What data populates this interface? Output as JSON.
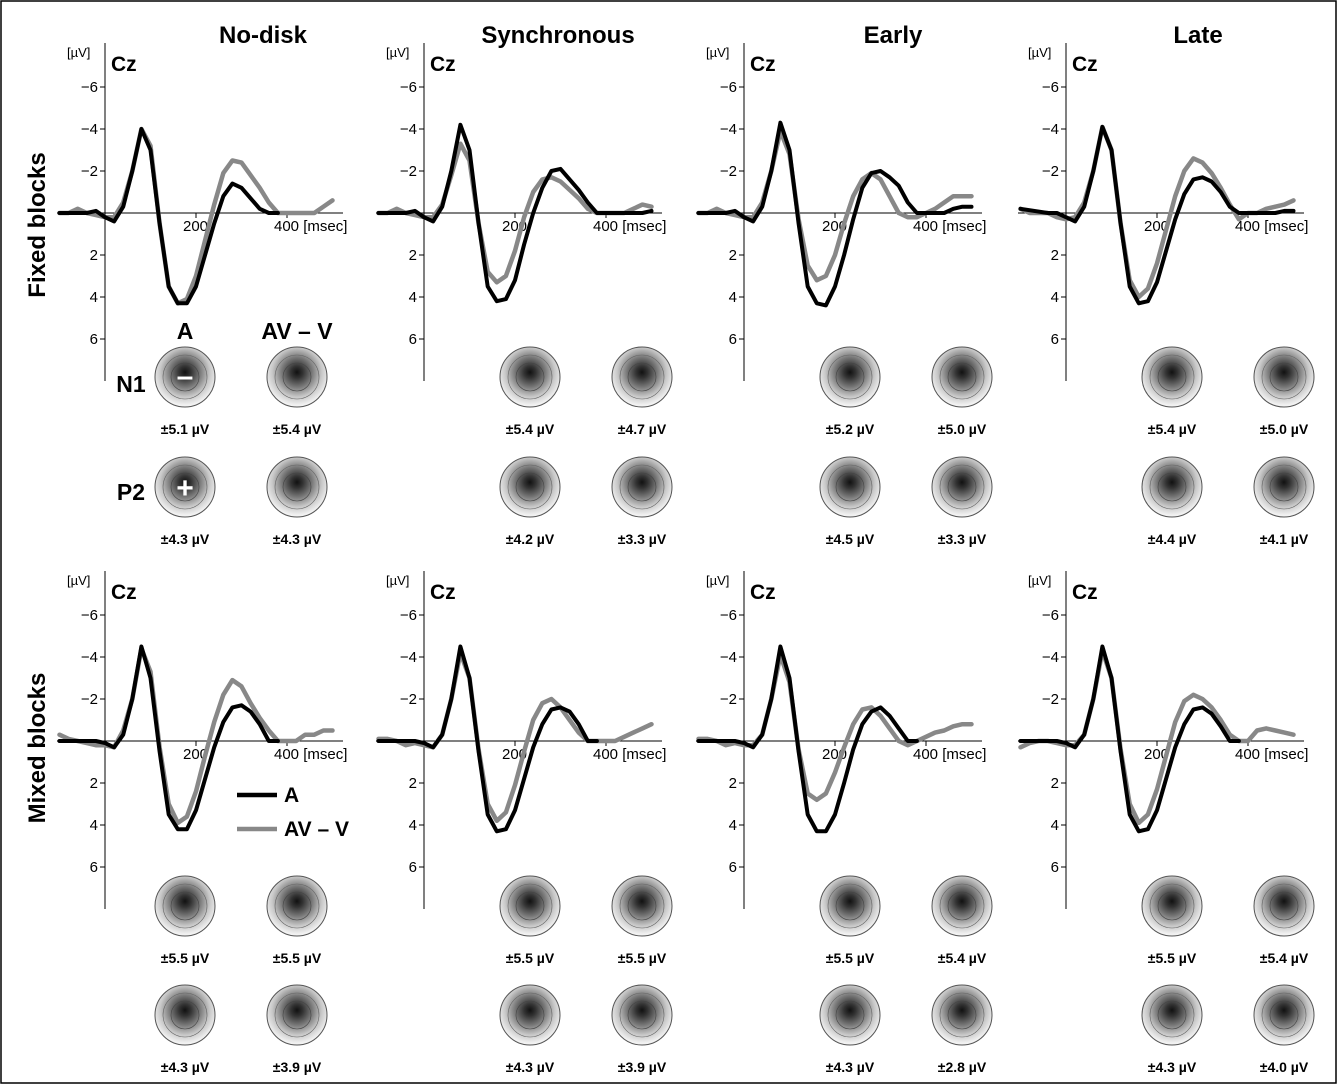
{
  "figure": {
    "columns": [
      "No-disk",
      "Synchronous",
      "Early",
      "Late"
    ],
    "rows": [
      "Fixed blocks",
      "Mixed blocks"
    ],
    "electrode": "Cz",
    "y_unit": "[µV]",
    "x_unit": "[msec]",
    "topo_headers": [
      "A",
      "AV – V"
    ],
    "topo_row_labels": [
      "N1",
      "P2"
    ],
    "topo_polarity_marks": [
      "–",
      "+"
    ],
    "legend": [
      "A",
      "AV – V"
    ]
  },
  "chart_data": {
    "type": "line",
    "x_ticks": [
      200,
      400
    ],
    "x_tick_labels": [
      "200",
      "400 [msec]"
    ],
    "y_ticks": [
      -6,
      -4,
      -2,
      2,
      4,
      6
    ],
    "y_tick_labels": [
      "−6",
      "−4",
      "−2",
      "2",
      "4",
      "6"
    ],
    "y_inverted": true,
    "xlim": [
      -100,
      500
    ],
    "ylim": [
      -7.5,
      8
    ],
    "series_colors": {
      "A": "#000000",
      "AV – V": "#888888"
    },
    "panels": [
      {
        "row": "Fixed blocks",
        "column": "No-disk",
        "A": {
          "x": [
            -100,
            -40,
            -20,
            0,
            20,
            40,
            60,
            80,
            100,
            120,
            140,
            160,
            180,
            200,
            220,
            240,
            260,
            280,
            300,
            320,
            340,
            360,
            380
          ],
          "y": [
            0,
            0,
            -0.1,
            0.2,
            0.4,
            -0.3,
            -2,
            -4,
            -3,
            0.5,
            3.5,
            4.3,
            4.3,
            3.5,
            2,
            0.5,
            -0.8,
            -1.4,
            -1.2,
            -0.7,
            -0.2,
            0,
            0
          ]
        },
        "AV – V": {
          "x": [
            -100,
            -80,
            -60,
            -40,
            -20,
            0,
            20,
            40,
            60,
            80,
            100,
            120,
            140,
            160,
            180,
            200,
            220,
            240,
            260,
            280,
            300,
            320,
            340,
            360,
            380,
            400,
            420,
            440,
            460,
            480,
            500
          ],
          "y": [
            0,
            0,
            -0.2,
            0,
            0.1,
            0.2,
            0.2,
            -0.5,
            -2,
            -4,
            -3.2,
            0.5,
            3.5,
            4.3,
            4.1,
            3,
            1.3,
            -0.4,
            -1.9,
            -2.5,
            -2.4,
            -1.8,
            -1.2,
            -0.5,
            0,
            0,
            0,
            0,
            0,
            -0.3,
            -0.6
          ]
        },
        "topo_values": {
          "N1": [
            "±5.1 µV",
            "±5.4 µV"
          ],
          "P2": [
            "±4.3 µV",
            "±4.3 µV"
          ]
        }
      },
      {
        "row": "Fixed blocks",
        "column": "Synchronous",
        "A": {
          "x": [
            -100,
            -40,
            -20,
            0,
            20,
            40,
            60,
            80,
            100,
            120,
            140,
            160,
            180,
            200,
            220,
            240,
            260,
            280,
            300,
            320,
            340,
            360,
            380,
            400,
            420,
            440,
            460,
            480,
            500
          ],
          "y": [
            0,
            0,
            -0.1,
            0.2,
            0.4,
            -0.3,
            -2,
            -4.2,
            -3,
            0.5,
            3.5,
            4.2,
            4.1,
            3.2,
            1.5,
            0,
            -1.2,
            -2,
            -2.1,
            -1.6,
            -1.1,
            -0.5,
            0,
            0,
            0,
            0,
            0,
            0,
            -0.1
          ]
        },
        "AV – V": {
          "x": [
            -100,
            -80,
            -60,
            -40,
            -20,
            0,
            20,
            40,
            60,
            80,
            100,
            120,
            140,
            160,
            180,
            200,
            220,
            240,
            260,
            280,
            300,
            320,
            340,
            360,
            380,
            400,
            420,
            440,
            460,
            480,
            500
          ],
          "y": [
            0,
            0,
            -0.2,
            0,
            0.1,
            0.2,
            0.2,
            -0.4,
            -1.8,
            -3.3,
            -2.5,
            0.5,
            2.8,
            3.3,
            3,
            1.8,
            0.2,
            -1,
            -1.6,
            -1.7,
            -1.5,
            -1.1,
            -0.7,
            -0.2,
            0,
            0,
            0,
            0,
            -0.2,
            -0.4,
            -0.3
          ]
        },
        "topo_values": {
          "N1": [
            "±5.4 µV",
            "±4.7 µV"
          ],
          "P2": [
            "±4.2 µV",
            "±3.3 µV"
          ]
        }
      },
      {
        "row": "Fixed blocks",
        "column": "Early",
        "A": {
          "x": [
            -100,
            -40,
            -20,
            0,
            20,
            40,
            60,
            80,
            100,
            120,
            140,
            160,
            180,
            200,
            220,
            240,
            260,
            280,
            300,
            320,
            340,
            360,
            380,
            400,
            420,
            440,
            460,
            480,
            500
          ],
          "y": [
            0,
            0,
            -0.1,
            0.2,
            0.4,
            -0.3,
            -2,
            -4.3,
            -3,
            0.5,
            3.5,
            4.3,
            4.4,
            3.5,
            2,
            0.3,
            -1.2,
            -1.9,
            -2,
            -1.7,
            -1.3,
            -0.5,
            0,
            0,
            0,
            0,
            -0.2,
            -0.3,
            -0.3
          ]
        },
        "AV – V": {
          "x": [
            -100,
            -80,
            -60,
            -40,
            -20,
            0,
            20,
            40,
            60,
            80,
            100,
            120,
            140,
            160,
            180,
            200,
            220,
            240,
            260,
            280,
            300,
            320,
            340,
            360,
            380,
            400,
            420,
            440,
            460,
            480,
            500
          ],
          "y": [
            0,
            0,
            -0.2,
            0,
            0.1,
            0.2,
            0.2,
            -0.5,
            -2,
            -3.9,
            -2.8,
            0.3,
            2.5,
            3.2,
            3,
            2,
            0.5,
            -0.8,
            -1.6,
            -1.9,
            -1.6,
            -0.8,
            0,
            0.2,
            0.2,
            0,
            -0.2,
            -0.5,
            -0.8,
            -0.8,
            -0.8
          ]
        },
        "topo_values": {
          "N1": [
            "±5.2 µV",
            "±5.0 µV"
          ],
          "P2": [
            "±4.5 µV",
            "±3.3 µV"
          ]
        }
      },
      {
        "row": "Fixed blocks",
        "column": "Late",
        "A": {
          "x": [
            -100,
            -40,
            -20,
            0,
            20,
            40,
            60,
            80,
            100,
            120,
            140,
            160,
            180,
            200,
            220,
            240,
            260,
            280,
            300,
            320,
            340,
            360,
            380,
            400,
            420,
            440,
            460,
            480,
            500
          ],
          "y": [
            -0.2,
            0,
            0,
            0.2,
            0.4,
            -0.3,
            -2,
            -4.1,
            -3,
            0.5,
            3.5,
            4.3,
            4.2,
            3.3,
            1.8,
            0.3,
            -0.9,
            -1.6,
            -1.7,
            -1.5,
            -1,
            -0.3,
            0,
            0,
            0,
            0,
            0,
            -0.1,
            -0.1
          ]
        },
        "AV – V": {
          "x": [
            -100,
            -80,
            -60,
            -40,
            -20,
            0,
            20,
            40,
            60,
            80,
            100,
            120,
            140,
            160,
            180,
            200,
            220,
            240,
            260,
            280,
            300,
            320,
            340,
            360,
            380,
            400,
            420,
            440,
            460,
            480,
            500
          ],
          "y": [
            -0.2,
            0,
            0,
            0,
            0.2,
            0.3,
            0.2,
            -0.5,
            -2,
            -4.1,
            -3,
            0.5,
            3.2,
            4,
            3.6,
            2.4,
            0.8,
            -0.8,
            -2,
            -2.6,
            -2.4,
            -1.9,
            -1.2,
            -0.4,
            0.3,
            0,
            0,
            -0.2,
            -0.3,
            -0.4,
            -0.6
          ]
        },
        "topo_values": {
          "N1": [
            "±5.4 µV",
            "±5.0 µV"
          ],
          "P2": [
            "±4.4 µV",
            "±4.1 µV"
          ]
        }
      },
      {
        "row": "Mixed blocks",
        "column": "No-disk",
        "A": {
          "x": [
            -100,
            -40,
            -20,
            0,
            20,
            40,
            60,
            80,
            100,
            120,
            140,
            160,
            180,
            200,
            220,
            240,
            260,
            280,
            300,
            320,
            340,
            360,
            380
          ],
          "y": [
            0,
            0,
            0,
            0.1,
            0.3,
            -0.3,
            -2,
            -4.5,
            -3,
            0.5,
            3.5,
            4.2,
            4.2,
            3.3,
            1.8,
            0.3,
            -0.9,
            -1.6,
            -1.7,
            -1.4,
            -0.8,
            0,
            0
          ]
        },
        "AV – V": {
          "x": [
            -100,
            -80,
            -60,
            -40,
            -20,
            0,
            20,
            40,
            60,
            80,
            100,
            120,
            140,
            160,
            180,
            200,
            220,
            240,
            260,
            280,
            300,
            320,
            340,
            360,
            380,
            400,
            420,
            440,
            460,
            480,
            500
          ],
          "y": [
            -0.3,
            -0.1,
            0,
            0.1,
            0.2,
            0.2,
            0.3,
            -0.5,
            -2,
            -4.4,
            -3.3,
            0.3,
            3,
            3.9,
            3.6,
            2.4,
            0.7,
            -0.9,
            -2.2,
            -2.9,
            -2.6,
            -1.8,
            -1.1,
            -0.5,
            0,
            0,
            0,
            -0.3,
            -0.3,
            -0.5,
            -0.5
          ]
        },
        "topo_values": {
          "N1": [
            "±5.5 µV",
            "±5.5 µV"
          ],
          "P2": [
            "±4.3 µV",
            "±3.9 µV"
          ]
        }
      },
      {
        "row": "Mixed blocks",
        "column": "Synchronous",
        "A": {
          "x": [
            -100,
            -40,
            -20,
            0,
            20,
            40,
            60,
            80,
            100,
            120,
            140,
            160,
            180,
            200,
            220,
            240,
            260,
            280,
            300,
            320,
            340,
            360,
            380
          ],
          "y": [
            0,
            0,
            0,
            0.1,
            0.3,
            -0.3,
            -2,
            -4.5,
            -3,
            0.5,
            3.5,
            4.3,
            4.2,
            3.3,
            1.8,
            0.3,
            -0.8,
            -1.5,
            -1.6,
            -1.4,
            -0.8,
            0,
            0
          ]
        },
        "AV – V": {
          "x": [
            -100,
            -80,
            -60,
            -40,
            -20,
            0,
            20,
            40,
            60,
            80,
            100,
            120,
            140,
            160,
            180,
            200,
            220,
            240,
            260,
            280,
            300,
            320,
            340,
            360,
            380,
            400,
            420,
            440,
            460,
            480,
            500
          ],
          "y": [
            -0.1,
            -0.1,
            0,
            0.2,
            0.1,
            0.2,
            0.3,
            -0.3,
            -2,
            -4.2,
            -3,
            0.4,
            3,
            3.8,
            3.4,
            2.1,
            0.5,
            -1,
            -1.8,
            -2,
            -1.6,
            -1,
            -0.4,
            0,
            0,
            0,
            0,
            -0.2,
            -0.4,
            -0.6,
            -0.8
          ]
        },
        "topo_values": {
          "N1": [
            "±5.5 µV",
            "±5.5 µV"
          ],
          "P2": [
            "±4.3 µV",
            "±3.9 µV"
          ]
        }
      },
      {
        "row": "Mixed blocks",
        "column": "Early",
        "A": {
          "x": [
            -100,
            -40,
            -20,
            0,
            20,
            40,
            60,
            80,
            100,
            120,
            140,
            160,
            180,
            200,
            220,
            240,
            260,
            280,
            300,
            320,
            340,
            360,
            380
          ],
          "y": [
            0,
            0,
            0,
            0.1,
            0.3,
            -0.3,
            -2,
            -4.5,
            -3,
            0.5,
            3.5,
            4.3,
            4.3,
            3.5,
            2,
            0.4,
            -0.8,
            -1.4,
            -1.6,
            -1.2,
            -0.6,
            0,
            0
          ]
        },
        "AV – V": {
          "x": [
            -100,
            -80,
            -60,
            -40,
            -20,
            0,
            20,
            40,
            60,
            80,
            100,
            120,
            140,
            160,
            180,
            200,
            220,
            240,
            260,
            280,
            300,
            320,
            340,
            360,
            380,
            400,
            420,
            440,
            460,
            480,
            500
          ],
          "y": [
            -0.1,
            -0.1,
            0,
            0.2,
            0.1,
            0.2,
            0.2,
            -0.3,
            -2,
            -4.1,
            -2.8,
            0.4,
            2.5,
            2.8,
            2.5,
            1.5,
            0.3,
            -0.8,
            -1.5,
            -1.6,
            -1.2,
            -0.6,
            0,
            0.2,
            0,
            -0.2,
            -0.4,
            -0.5,
            -0.7,
            -0.8,
            -0.8
          ]
        },
        "topo_values": {
          "N1": [
            "±5.5 µV",
            "±5.4 µV"
          ],
          "P2": [
            "±4.3 µV",
            "±2.8 µV"
          ]
        }
      },
      {
        "row": "Mixed blocks",
        "column": "Late",
        "A": {
          "x": [
            -100,
            -40,
            -20,
            0,
            20,
            40,
            60,
            80,
            100,
            120,
            140,
            160,
            180,
            200,
            220,
            240,
            260,
            280,
            300,
            320,
            340,
            360,
            380
          ],
          "y": [
            0,
            0,
            0,
            0.1,
            0.3,
            -0.3,
            -2,
            -4.5,
            -3,
            0.5,
            3.5,
            4.3,
            4.2,
            3.3,
            1.8,
            0.3,
            -0.8,
            -1.5,
            -1.6,
            -1.3,
            -0.7,
            0,
            0
          ]
        },
        "AV – V": {
          "x": [
            -100,
            -80,
            -60,
            -40,
            -20,
            0,
            20,
            40,
            60,
            80,
            100,
            120,
            140,
            160,
            180,
            200,
            220,
            240,
            260,
            280,
            300,
            320,
            340,
            360,
            380,
            400,
            420,
            440,
            460,
            480,
            500
          ],
          "y": [
            0.3,
            0.1,
            0,
            0,
            0.1,
            0.2,
            0.2,
            -0.3,
            -2,
            -4.3,
            -3,
            0.4,
            3,
            3.9,
            3.5,
            2.3,
            0.7,
            -0.9,
            -1.9,
            -2.2,
            -2,
            -1.6,
            -1,
            -0.3,
            0,
            0,
            -0.5,
            -0.6,
            -0.5,
            -0.4,
            -0.3
          ]
        },
        "topo_values": {
          "N1": [
            "±5.5 µV",
            "±5.4 µV"
          ],
          "P2": [
            "±4.3 µV",
            "±4.0 µV"
          ]
        }
      }
    ]
  }
}
